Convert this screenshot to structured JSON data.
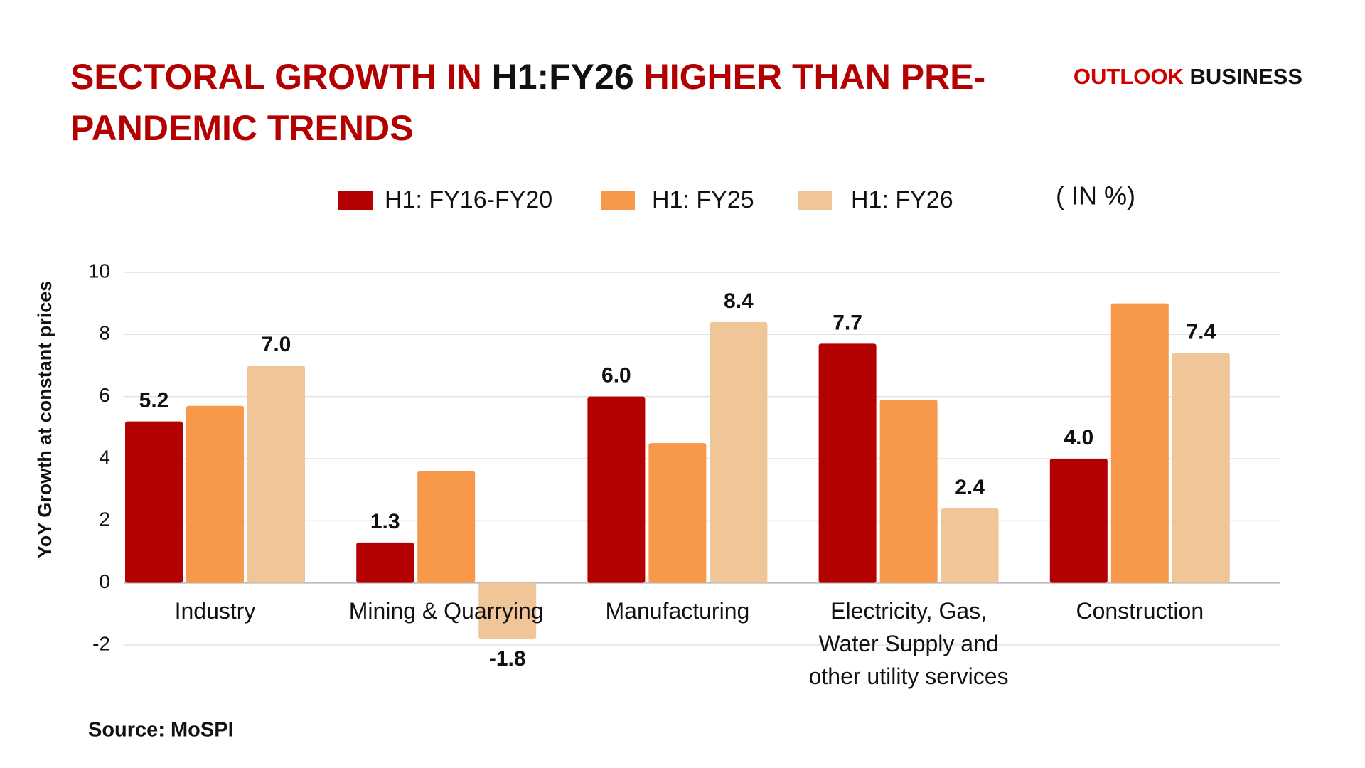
{
  "chart_data": {
    "type": "bar",
    "title_parts": [
      "SECTORAL GROWTH IN",
      "H1:FY26",
      "HIGHER THAN PRE-PANDEMIC TRENDS"
    ],
    "brand_parts": [
      "OUTLOOK",
      "BUSINESS"
    ],
    "unit_note": "( IN %)",
    "y_label": "YoY Growth at constant prices",
    "source": "Source: MoSPI",
    "categories": [
      "Industry",
      "Mining & Quarrying",
      "Manufacturing",
      "Electricity, Gas, Water Supply and other utility services",
      "Construction"
    ],
    "series": [
      {
        "name": "H1: FY16-FY20",
        "color": "#b30000",
        "values": [
          5.2,
          1.3,
          6.0,
          7.7,
          4.0
        ],
        "value_labels": [
          "5.2",
          "1.3",
          "6.0",
          "7.7",
          "4.0"
        ]
      },
      {
        "name": "H1: FY25",
        "color": "#f7984a",
        "values": [
          5.7,
          3.6,
          4.5,
          5.9,
          9.0
        ]
      },
      {
        "name": "H1: FY26",
        "color": "#f0c699",
        "values": [
          7.0,
          -1.8,
          8.4,
          2.4,
          7.4
        ],
        "value_labels": [
          "7.0",
          "-1.8",
          "8.4",
          "2.4",
          "7.4"
        ]
      }
    ],
    "ylim": [
      -2,
      10
    ],
    "yticks": [
      -2,
      0,
      2,
      4,
      6,
      8,
      10
    ],
    "grid": true
  }
}
